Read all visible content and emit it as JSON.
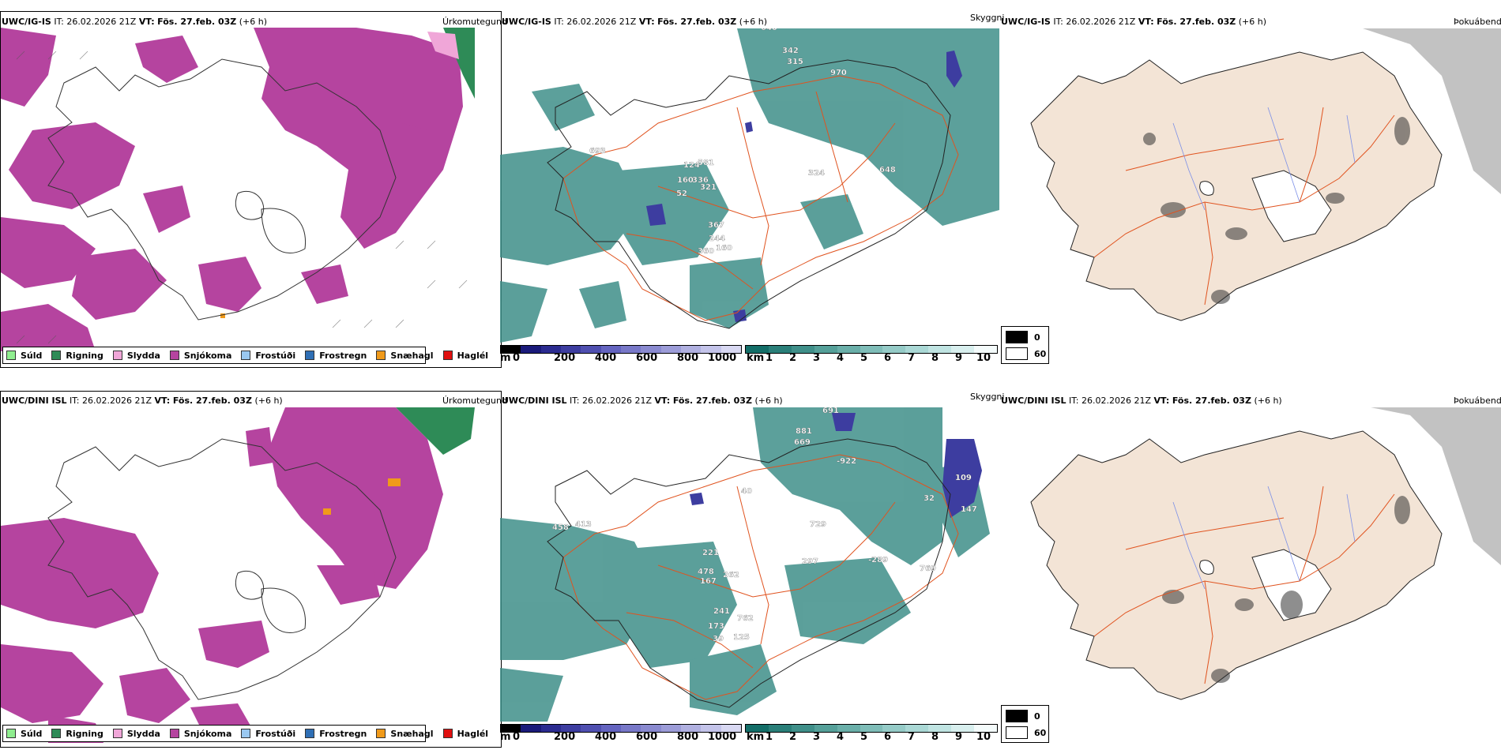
{
  "precip_panels": [
    {
      "model": "UWC/IG-IS",
      "it": "IT: 26.02.2026 21Z",
      "vt_prefix": "VT:",
      "vt": "Fös. 27.feb. 03Z",
      "lead": "(+6 h)",
      "title": "Úrkomutegund"
    },
    {
      "model": "UWC/DINI ISL",
      "it": "IT: 26.02.2026 21Z",
      "vt_prefix": "VT:",
      "vt": "Fös. 27.feb. 03Z",
      "lead": "(+6 h)",
      "title": "Úrkomutegund"
    }
  ],
  "vis_panels": [
    {
      "model": "UWC/IG-IS",
      "it": "IT: 26.02.2026 21Z",
      "vt_prefix": "VT:",
      "vt": "Fös. 27.feb. 03Z",
      "lead": "(+6 h)",
      "title": "Skyggni",
      "labels": [
        "640",
        "342",
        "315",
        "970",
        "693",
        "581",
        "124",
        "336",
        "160",
        "321",
        "52",
        "324",
        "648",
        "367",
        "244",
        "360",
        "160"
      ]
    },
    {
      "model": "UWC/DINI ISL",
      "it": "IT: 26.02.2026 21Z",
      "vt_prefix": "VT:",
      "vt": "Fös. 27.feb. 03Z",
      "lead": "(+6 h)",
      "title": "Skyggni",
      "labels": [
        "691",
        "881",
        "669",
        "-922",
        "109",
        "32",
        "147",
        "40",
        "458",
        "413",
        "221",
        "478",
        "167",
        "262",
        "729",
        "297",
        "-289",
        "769",
        "241",
        "762",
        "173",
        "39",
        "125"
      ]
    }
  ],
  "fog_panels": [
    {
      "model": "UWC/IG-IS",
      "it": "IT: 26.02.2026 21Z",
      "vt_prefix": "VT:",
      "vt": "Fös. 27.feb. 03Z",
      "lead": "(+6 h)",
      "title": "Þokuábendi"
    },
    {
      "model": "UWC/DINI ISL",
      "it": "IT: 26.02.2026 21Z",
      "vt_prefix": "VT:",
      "vt": "Fös. 27.feb. 03Z",
      "lead": "(+6 h)",
      "title": "Þokuábendi"
    }
  ],
  "precip_legend": [
    {
      "label": "Súld",
      "color": "#90ee90"
    },
    {
      "label": "Rigning",
      "color": "#2e8b57"
    },
    {
      "label": "Slydda",
      "color": "#f0a6d8"
    },
    {
      "label": "Snjókoma",
      "color": "#b5449f"
    },
    {
      "label": "Frostúði",
      "color": "#9ac8f0"
    },
    {
      "label": "Frostregn",
      "color": "#2f6fb5"
    },
    {
      "label": "Snæhagl",
      "color": "#f09a1a"
    },
    {
      "label": "Haglél",
      "color": "#e01010"
    }
  ],
  "height_bar": {
    "unit": "m",
    "ticks": [
      "0",
      "200",
      "400",
      "600",
      "800",
      "1000"
    ],
    "colors": [
      "#000000",
      "#1a1a7a",
      "#2b2b90",
      "#3d3da0",
      "#4f4fb0",
      "#6464c0",
      "#7878c8",
      "#8a8ad0",
      "#9c9cd8",
      "#b0b0e0",
      "#c4c4ea",
      "#d8d8f2"
    ]
  },
  "vis_bar": {
    "unit": "km",
    "ticks": [
      "1",
      "2",
      "3",
      "4",
      "5",
      "6",
      "7",
      "8",
      "9",
      "10"
    ],
    "colors": [
      "#136e68",
      "#2a7f79",
      "#3f8f89",
      "#55a099",
      "#6aafa9",
      "#7fbdb8",
      "#95cbc7",
      "#aad8d5",
      "#c0e4e2",
      "#d8efee",
      "#f4fbfb"
    ]
  },
  "fog_legend": [
    {
      "label": "0",
      "color": "#000000"
    },
    {
      "label": "60",
      "color": "#ffffff"
    }
  ],
  "colors": {
    "snow": "#b5449f",
    "rain": "#2e8b57",
    "sleet": "#f0a6d8",
    "ice_pellets": "#f09a1a",
    "vis_teal": "#3f8f89",
    "vis_blue": "#3d3da0",
    "fog_land": "#f3e4d6",
    "roads": "#e0531f",
    "rivers": "#7b8fe8"
  }
}
